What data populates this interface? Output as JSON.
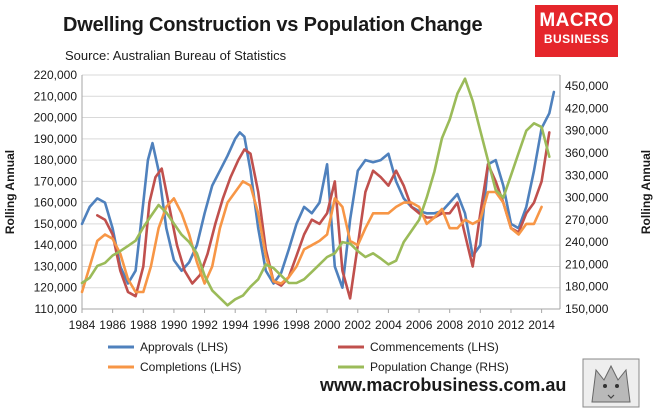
{
  "title": "Dwelling Construction vs Population Change",
  "source": "Source: Australian Bureau of Statistics",
  "logo": {
    "line1": "MACRO",
    "line2": "BUSINESS"
  },
  "website": "www.macrobusiness.com.au",
  "colors": {
    "approvals": "#4f81bd",
    "commencements": "#c0504d",
    "completions": "#f79646",
    "population": "#9bbb59",
    "logo_bg": "#e5262b"
  },
  "chart_data": {
    "type": "line",
    "title": "Dwelling Construction vs Population Change",
    "ylabel": "Rolling Annual",
    "y2label": "Rolling Annual",
    "xlim": [
      1984,
      2015.2
    ],
    "ylim": [
      110000,
      220000
    ],
    "y2lim": [
      150000,
      465000
    ],
    "xticks": [
      "1984",
      "1986",
      "1988",
      "1990",
      "1992",
      "1994",
      "1996",
      "1998",
      "2000",
      "2002",
      "2004",
      "2006",
      "2008",
      "2010",
      "2012",
      "2014"
    ],
    "yticks": [
      "110,000",
      "120,000",
      "130,000",
      "140,000",
      "150,000",
      "160,000",
      "170,000",
      "180,000",
      "190,000",
      "200,000",
      "210,000",
      "220,000"
    ],
    "y2ticks": [
      "150,000",
      "180,000",
      "210,000",
      "240,000",
      "270,000",
      "300,000",
      "330,000",
      "360,000",
      "390,000",
      "420,000",
      "450,000"
    ],
    "grid": "horizontal",
    "legend_position": "bottom",
    "series": [
      {
        "name": "Approvals (LHS)",
        "axis": "left",
        "color": "#4f81bd",
        "x": [
          1984.0,
          1984.5,
          1985.0,
          1985.5,
          1986.0,
          1986.5,
          1987.0,
          1987.5,
          1988.0,
          1988.3,
          1988.6,
          1989.0,
          1989.5,
          1990.0,
          1990.5,
          1991.0,
          1991.5,
          1992.0,
          1992.5,
          1993.0,
          1993.5,
          1994.0,
          1994.3,
          1994.6,
          1995.0,
          1995.5,
          1996.0,
          1996.5,
          1997.0,
          1997.5,
          1998.0,
          1998.5,
          1999.0,
          1999.5,
          2000.0,
          2000.5,
          2001.0,
          2001.5,
          2002.0,
          2002.5,
          2003.0,
          2003.5,
          2004.0,
          2004.5,
          2005.0,
          2005.5,
          2006.0,
          2006.5,
          2007.0,
          2007.5,
          2008.0,
          2008.5,
          2009.0,
          2009.5,
          2010.0,
          2010.5,
          2011.0,
          2011.5,
          2012.0,
          2012.5,
          2013.0,
          2013.5,
          2014.0,
          2014.5,
          2014.8
        ],
        "values": [
          150000,
          158000,
          162000,
          160000,
          148000,
          130000,
          122000,
          128000,
          160000,
          180000,
          188000,
          175000,
          148000,
          133000,
          128000,
          132000,
          140000,
          155000,
          168000,
          175000,
          182000,
          190000,
          193000,
          191000,
          175000,
          148000,
          128000,
          122000,
          127000,
          138000,
          150000,
          158000,
          155000,
          160000,
          178000,
          130000,
          120000,
          152000,
          175000,
          180000,
          179000,
          180000,
          183000,
          170000,
          162000,
          158000,
          156000,
          155000,
          155000,
          156000,
          160000,
          164000,
          155000,
          135000,
          140000,
          178000,
          180000,
          168000,
          150000,
          148000,
          158000,
          175000,
          195000,
          202000,
          212000
        ]
      },
      {
        "name": "Commencements (LHS)",
        "axis": "left",
        "color": "#c0504d",
        "x": [
          1985.0,
          1985.5,
          1986.0,
          1986.5,
          1987.0,
          1987.5,
          1988.0,
          1988.4,
          1988.8,
          1989.2,
          1989.7,
          1990.2,
          1990.7,
          1991.2,
          1991.7,
          1992.2,
          1992.7,
          1993.2,
          1993.7,
          1994.2,
          1994.6,
          1995.0,
          1995.5,
          1996.0,
          1996.5,
          1997.0,
          1997.5,
          1998.0,
          1998.5,
          1999.0,
          1999.5,
          2000.0,
          2000.5,
          2001.0,
          2001.5,
          2002.0,
          2002.5,
          2003.0,
          2003.5,
          2004.0,
          2004.5,
          2005.0,
          2005.5,
          2006.0,
          2006.5,
          2007.0,
          2007.5,
          2008.0,
          2008.5,
          2009.0,
          2009.5,
          2010.0,
          2010.5,
          2011.0,
          2011.5,
          2012.0,
          2012.5,
          2013.0,
          2013.5,
          2014.0,
          2014.5
        ],
        "values": [
          154000,
          152000,
          145000,
          128000,
          118000,
          116000,
          130000,
          160000,
          172000,
          176000,
          158000,
          140000,
          128000,
          122000,
          126000,
          136000,
          150000,
          162000,
          172000,
          180000,
          185000,
          183000,
          165000,
          138000,
          123000,
          121000,
          125000,
          135000,
          145000,
          152000,
          150000,
          155000,
          170000,
          128000,
          115000,
          140000,
          165000,
          175000,
          172000,
          168000,
          175000,
          168000,
          158000,
          155000,
          153000,
          153000,
          155000,
          155000,
          160000,
          145000,
          130000,
          155000,
          178000,
          170000,
          160000,
          148000,
          146000,
          155000,
          160000,
          170000,
          193000
        ]
      },
      {
        "name": "Completions (LHS)",
        "axis": "left",
        "color": "#f79646",
        "x": [
          1984.0,
          1984.5,
          1985.0,
          1985.5,
          1986.0,
          1986.5,
          1987.0,
          1987.5,
          1988.0,
          1988.5,
          1989.0,
          1989.5,
          1990.0,
          1990.5,
          1991.0,
          1991.5,
          1992.0,
          1992.5,
          1993.0,
          1993.5,
          1994.0,
          1994.5,
          1995.0,
          1995.5,
          1996.0,
          1996.5,
          1997.0,
          1997.5,
          1998.0,
          1998.5,
          1999.0,
          1999.5,
          2000.0,
          2000.5,
          2001.0,
          2001.5,
          2002.0,
          2002.5,
          2003.0,
          2003.5,
          2004.0,
          2004.5,
          2005.0,
          2005.5,
          2006.0,
          2006.5,
          2007.0,
          2007.5,
          2008.0,
          2008.5,
          2009.0,
          2009.5,
          2010.0,
          2010.5,
          2011.0,
          2011.5,
          2012.0,
          2012.5,
          2013.0,
          2013.5,
          2014.0
        ],
        "values": [
          118000,
          130000,
          142000,
          145000,
          143000,
          136000,
          124000,
          118000,
          118000,
          130000,
          148000,
          158000,
          162000,
          155000,
          145000,
          132000,
          122000,
          130000,
          148000,
          160000,
          165000,
          170000,
          168000,
          155000,
          135000,
          123000,
          122000,
          125000,
          130000,
          138000,
          140000,
          142000,
          145000,
          162000,
          158000,
          142000,
          140000,
          148000,
          155000,
          155000,
          155000,
          158000,
          160000,
          160000,
          158000,
          150000,
          153000,
          157000,
          148000,
          148000,
          152000,
          150000,
          152000,
          165000,
          165000,
          160000,
          148000,
          145000,
          150000,
          150000,
          158000
        ]
      },
      {
        "name": "Population Change (RHS)",
        "axis": "right",
        "color": "#9bbb59",
        "x": [
          1984.0,
          1984.5,
          1985.0,
          1985.5,
          1986.0,
          1986.5,
          1987.0,
          1987.5,
          1988.0,
          1988.5,
          1989.0,
          1989.5,
          1990.0,
          1990.5,
          1991.0,
          1991.5,
          1992.0,
          1992.5,
          1993.0,
          1993.5,
          1994.0,
          1994.5,
          1995.0,
          1995.5,
          1996.0,
          1996.5,
          1997.0,
          1997.5,
          1998.0,
          1998.5,
          1999.0,
          1999.5,
          2000.0,
          2000.5,
          2001.0,
          2001.5,
          2002.0,
          2002.5,
          2003.0,
          2003.5,
          2004.0,
          2004.5,
          2005.0,
          2005.5,
          2006.0,
          2006.5,
          2007.0,
          2007.5,
          2008.0,
          2008.5,
          2009.0,
          2009.5,
          2010.0,
          2010.5,
          2011.0,
          2011.5,
          2012.0,
          2012.5,
          2013.0,
          2013.5,
          2014.0,
          2014.5
        ],
        "values": [
          185000,
          192000,
          208000,
          212000,
          222000,
          228000,
          235000,
          242000,
          260000,
          275000,
          290000,
          280000,
          265000,
          250000,
          240000,
          225000,
          195000,
          175000,
          165000,
          155000,
          163000,
          168000,
          180000,
          190000,
          210000,
          205000,
          195000,
          185000,
          185000,
          190000,
          200000,
          210000,
          220000,
          225000,
          240000,
          238000,
          228000,
          220000,
          225000,
          218000,
          210000,
          215000,
          240000,
          255000,
          270000,
          300000,
          335000,
          380000,
          405000,
          440000,
          460000,
          430000,
          390000,
          350000,
          310000,
          300000,
          330000,
          360000,
          390000,
          400000,
          395000,
          355000
        ]
      }
    ]
  }
}
